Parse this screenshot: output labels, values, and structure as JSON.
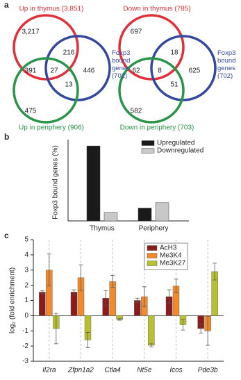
{
  "panels": [
    "a",
    "b",
    "c"
  ],
  "chart_data": [
    {
      "type": "venn",
      "sets": [
        {
          "name": "Up in thymus (3,851)",
          "color": "#e0303a"
        },
        {
          "name": "Foxp3 bound genes (702)",
          "color": "#3548a0"
        },
        {
          "name": "Up in periphery (906)",
          "color": "#2a9448"
        }
      ],
      "values": [
        3217,
        216,
        446,
        391,
        27,
        13,
        475
      ],
      "value_labels": [
        "3,217",
        "216",
        "446",
        "391",
        "27",
        "13",
        "475"
      ]
    },
    {
      "type": "venn",
      "sets": [
        {
          "name": "Down in thymus (785)",
          "color": "#e0303a"
        },
        {
          "name": "Foxp3 bound genes (702)",
          "color": "#3548a0"
        },
        {
          "name": "Down in periphery (703)",
          "color": "#2a9448"
        }
      ],
      "values": [
        697,
        18,
        625,
        62,
        8,
        51,
        582
      ],
      "value_labels": [
        "697",
        "18",
        "625",
        "62",
        "8",
        "51",
        "582"
      ]
    },
    {
      "type": "bar",
      "ylabel": "Foxp3 bound genes (%)",
      "categories": [
        "Thymus",
        "Periphery"
      ],
      "series": [
        {
          "name": "Upregulated",
          "color": "#1a1a1a",
          "values": [
            35,
            6
          ]
        },
        {
          "name": "Downregulated",
          "color": "#c8c8c8",
          "values": [
            4,
            8.5
          ]
        }
      ],
      "ylim": [
        0,
        36
      ],
      "legend": "upper-right"
    },
    {
      "type": "errorbar",
      "ylabel": "log₂ (fold enrichment)",
      "categories": [
        "Il2ra",
        "Zfpn1a2",
        "Ctla4",
        "Nt5e",
        "Icos",
        "Pde3b"
      ],
      "series": [
        {
          "name": "AcH3",
          "color": "#8b1c1c",
          "values": [
            1.55,
            1.55,
            1.15,
            1.0,
            1.25,
            -0.85
          ],
          "errors": [
            0.1,
            0.15,
            0.5,
            0.15,
            0.45,
            0.3
          ]
        },
        {
          "name": "Me3K4",
          "color": "#f08a2c",
          "values": [
            3.0,
            2.5,
            2.25,
            1.25,
            1.95,
            -1.0
          ],
          "errors": [
            1.05,
            0.85,
            0.4,
            0.65,
            0.45,
            0.95
          ]
        },
        {
          "name": "Me3K27",
          "color": "#b7c030",
          "values": [
            -0.85,
            -1.6,
            -0.25,
            -1.95,
            -0.6,
            2.9
          ],
          "errors": [
            1.0,
            0.5,
            0.05,
            0.1,
            0.35,
            0.55
          ]
        }
      ],
      "ylim": [
        -3,
        5
      ],
      "yticks": [
        -3,
        -2,
        -1,
        0,
        1,
        2,
        3,
        4,
        5
      ],
      "legend": "upper-right"
    }
  ]
}
